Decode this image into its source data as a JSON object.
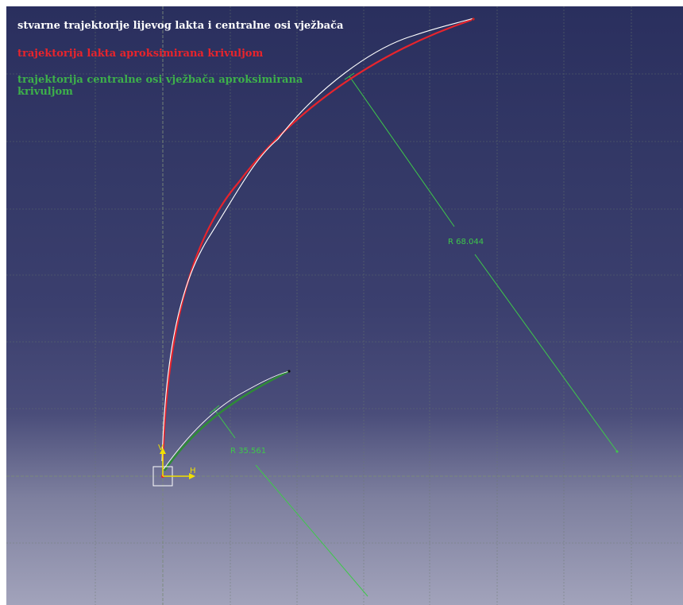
{
  "legend": {
    "actual": "stvarne trajektorije lijevog lakta i centralne osi vježbača",
    "elbow": "trajektorija lakta aproksimirana krivuljom",
    "axis": "trajektorija centralne osi vježbača aproksimirana krivuljom"
  },
  "dimensions": {
    "large_radius": "R 68.044",
    "small_radius": "R 35.561"
  },
  "axes": {
    "horizontal": "H",
    "vertical": "V"
  },
  "colors": {
    "actual_trajectory": "#ffffff",
    "elbow_curve": "#e8242c",
    "axis_curve": "#3db04a",
    "dimension": "#3ec84a",
    "axis_marker": "#f0e000",
    "grid": "#6a7a6a"
  }
}
